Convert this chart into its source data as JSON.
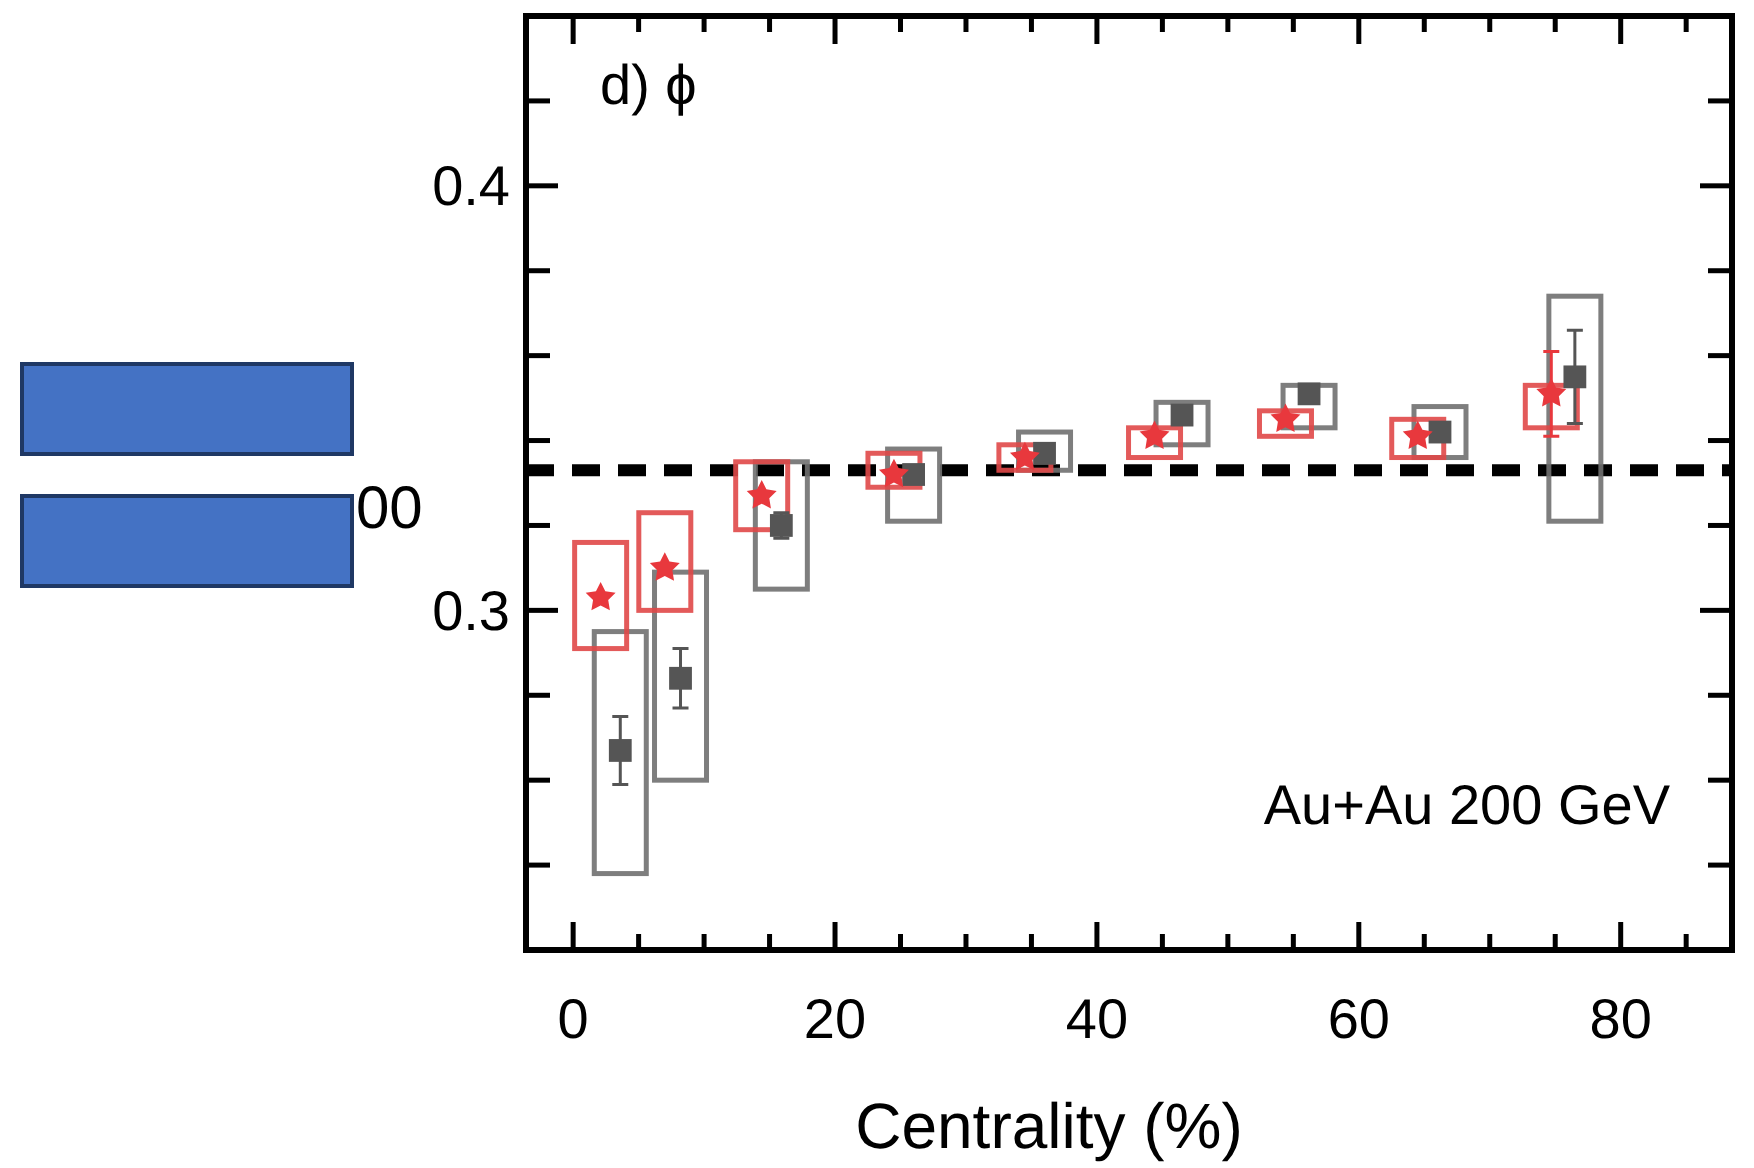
{
  "chart_data": {
    "type": "scatter",
    "xlabel": "Centrality (%)",
    "ylabel": "00",
    "xlim": [
      -3.6,
      88.5
    ],
    "ylim": [
      0.22,
      0.44
    ],
    "xticks": [
      0,
      {
        "value": 5,
        "label": null
      },
      {
        "value": 10,
        "label": null
      },
      {
        "value": 15,
        "label": null
      },
      20,
      {
        "value": 25,
        "label": null
      },
      {
        "value": 30,
        "label": null
      },
      {
        "value": 35,
        "label": null
      },
      40,
      {
        "value": 45,
        "label": null
      },
      {
        "value": 50,
        "label": null
      },
      {
        "value": 55,
        "label": null
      },
      60,
      {
        "value": 65,
        "label": null
      },
      {
        "value": 70,
        "label": null
      },
      {
        "value": 75,
        "label": null
      },
      80,
      {
        "value": 85,
        "label": null
      }
    ],
    "yticks": [
      {
        "value": 0.24,
        "label": null
      },
      {
        "value": 0.26,
        "label": null
      },
      {
        "value": 0.28,
        "label": null
      },
      0.3,
      {
        "value": 0.32,
        "label": null
      },
      {
        "value": 0.34,
        "label": null
      },
      {
        "value": 0.36,
        "label": null
      },
      {
        "value": 0.38,
        "label": null
      },
      0.4,
      {
        "value": 0.42,
        "label": null
      }
    ],
    "series": [
      {
        "type": "bar",
        "color": "#707070",
        "x": [
          3.6,
          8.2,
          15.9,
          26,
          36,
          46.5,
          56.2,
          66.2,
          76.5
        ],
        "base": [
          0.238,
          0.26,
          0.305,
          0.321,
          0.333,
          0.339,
          0.343,
          0.336,
          0.321
        ],
        "values": [
          0.057,
          0.049,
          0.03,
          0.017,
          0.009,
          0.01,
          0.01,
          0.012,
          0.053
        ]
      },
      {
        "type": "bar",
        "color": "#e04848",
        "x": [
          2.1,
          7,
          14.4,
          24.5,
          34.5,
          44.4,
          54.4,
          64.5,
          74.7
        ],
        "base": [
          0.291,
          0.3,
          0.319,
          0.329,
          0.333,
          0.336,
          0.341,
          0.336,
          0.343
        ],
        "values": [
          0.025,
          0.023,
          0.016,
          0.008,
          0.006,
          0.007,
          0.006,
          0.009,
          0.01
        ]
      },
      {
        "color": "#555555",
        "marker": "square",
        "x": [
          3.6,
          8.2,
          15.9,
          26,
          36,
          46.5,
          56.2,
          66.2,
          76.5
        ],
        "values": [
          0.267,
          0.284,
          0.32,
          0.332,
          0.337,
          0.346,
          0.351,
          0.342,
          0.355
        ],
        "errors": [
          0.008,
          0.007,
          0.003,
          null,
          null,
          null,
          null,
          null,
          0.011
        ]
      },
      {
        "color": "#e8383d",
        "marker": "star",
        "x": [
          2.1,
          7,
          14.4,
          24.5,
          34.5,
          44.4,
          54.4,
          64.5,
          74.7
        ],
        "values": [
          0.303,
          0.31,
          0.327,
          0.332,
          0.336,
          0.341,
          0.345,
          0.341,
          0.351
        ],
        "errors": [
          null,
          null,
          null,
          null,
          null,
          null,
          null,
          null,
          0.01
        ]
      }
    ],
    "ref_lines": [
      {
        "axis": "y",
        "value": 0.333,
        "color": "#000000",
        "line_style": "dashed"
      }
    ],
    "annotations": [
      "d) ϕ",
      "Au+Au 200 GeV"
    ]
  }
}
